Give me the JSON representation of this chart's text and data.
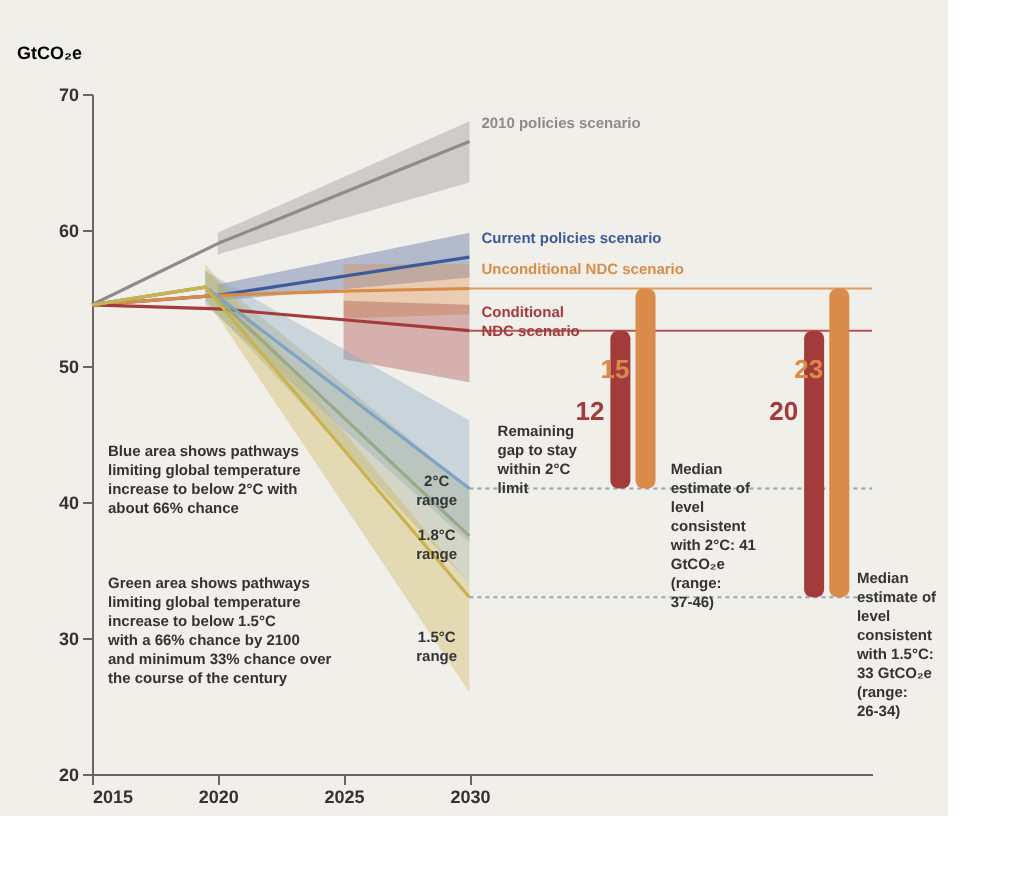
{
  "chart_data": {
    "type": "line",
    "ylabel": "GtCO₂e",
    "xlim": [
      2015,
      2046
    ],
    "xticks": [
      2015,
      2020,
      2025,
      2030
    ],
    "ylim": [
      20,
      70
    ],
    "yticks": [
      20,
      30,
      40,
      50,
      60,
      70
    ],
    "grid": false,
    "series": [
      {
        "name": "2010 policies scenario",
        "color": "#8c8c8c",
        "x": [
          2015,
          2020,
          2030
        ],
        "values": [
          54.5,
          59,
          66.5
        ],
        "lower": [
          null,
          58.2,
          63.5
        ],
        "upper": [
          null,
          59.8,
          68
        ]
      },
      {
        "name": "Current policies scenario",
        "color": "#3d5a99",
        "x": [
          2015,
          2020,
          2030
        ],
        "values": [
          54.5,
          55.2,
          58
        ],
        "lower": [
          null,
          54.8,
          56.5
        ],
        "upper": [
          null,
          56,
          59.8
        ]
      },
      {
        "name": "Unconditional NDC scenario",
        "color": "#d98c4a",
        "x": [
          2015,
          2020,
          2025,
          2030
        ],
        "values": [
          54.5,
          55.2,
          55.5,
          55.7
        ],
        "lower": [
          null,
          null,
          53.5,
          53.8
        ],
        "upper": [
          null,
          null,
          57.5,
          57.5
        ]
      },
      {
        "name": "Conditional NDC scenario",
        "color": "#a33b3b",
        "x": [
          2015,
          2020,
          2025,
          2030
        ],
        "values": [
          54.5,
          54.2,
          53.4,
          52.6
        ],
        "lower": [
          null,
          null,
          50.5,
          48.8
        ],
        "upper": [
          null,
          null,
          54.8,
          54.5
        ]
      },
      {
        "name": "2°C range",
        "color": "#7fa3c4",
        "x": [
          2015,
          2019.5,
          2030
        ],
        "values": [
          54.5,
          55.8,
          41
        ],
        "lower": [
          null,
          54.5,
          37
        ],
        "upper": [
          null,
          57,
          46
        ]
      },
      {
        "name": "1.8°C range",
        "color": "#9aa98a",
        "x": [
          2015,
          2019.5,
          2030
        ],
        "values": [
          54.5,
          55.8,
          37.5
        ],
        "lower": [
          null,
          54.8,
          34
        ],
        "upper": [
          null,
          57,
          41
        ]
      },
      {
        "name": "1.5°C range",
        "color": "#c9b250",
        "x": [
          2015,
          2019.5,
          2030
        ],
        "values": [
          54.5,
          55.8,
          33
        ],
        "lower": [
          null,
          55,
          26
        ],
        "upper": [
          null,
          57.5,
          34
        ]
      },
      {
        "type": "bar",
        "color": "#a33b3b",
        "x": [
          2036,
          2043.7
        ],
        "base": [
          41,
          33
        ],
        "values": [
          11.6,
          19.6
        ],
        "value_labels": [
          "12",
          "20"
        ]
      },
      {
        "type": "bar",
        "color": "#d98c4a",
        "x": [
          2037,
          2044.7
        ],
        "base": [
          41,
          33
        ],
        "values": [
          14.7,
          22.7
        ],
        "value_labels": [
          "15",
          "23"
        ]
      }
    ],
    "ref_lines": [
      {
        "axis": "y",
        "value": 55.7,
        "color": "#d98c4a"
      },
      {
        "axis": "y",
        "value": 52.6,
        "color": "#a33b3b"
      },
      {
        "axis": "y",
        "value": 41,
        "color": "#8899aa",
        "line_style": "dotted"
      },
      {
        "axis": "y",
        "value": 33,
        "color": "#8899aa",
        "line_style": "dotted"
      }
    ],
    "annotations": [
      "Blue area shows pathways limiting global temperature increase to below 2°C with about 66% chance",
      "Green area shows pathways limiting global temperature increase to below 1.5°C with a 66% chance by 2100 and minimum 33% chance over the course of the century",
      "Remaining gap to stay within 2°C limit",
      {
        "text": "Median estimate of level consistent with 2°C: 41 GtCO₂e (range: 37-46)",
        "x": 2038,
        "y": 41.3
      },
      {
        "text": "Median estimate of level consistent with 1.5°C: 33 GtCO₂e (range: 26-34)",
        "x": 2045.4,
        "y": 33.3
      }
    ]
  }
}
